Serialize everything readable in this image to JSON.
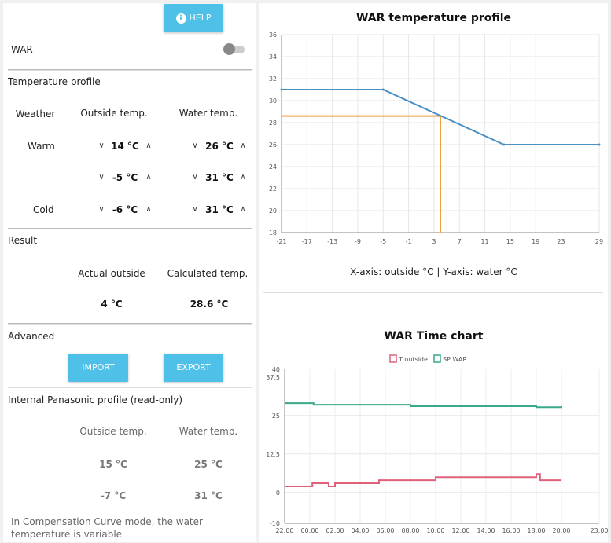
{
  "help_button": {
    "label": "HELP"
  },
  "war": {
    "label": "WAR",
    "enabled": false
  },
  "temperature_profile": {
    "title": "Temperature profile",
    "headers": {
      "weather": "Weather",
      "outside": "Outside temp.",
      "water": "Water temp."
    },
    "rows": [
      {
        "label": "Warm",
        "outside": "14 °C",
        "water": "26 °C"
      },
      {
        "label": "",
        "outside": "-5 °C",
        "water": "31 °C"
      },
      {
        "label": "Cold",
        "outside": "-6 °C",
        "water": "31 °C"
      }
    ]
  },
  "result": {
    "title": "Result",
    "actual_label": "Actual outside",
    "calculated_label": "Calculated temp.",
    "actual_value": "4 °C",
    "calculated_value": "28.6 °C"
  },
  "advanced": {
    "title": "Advanced",
    "import_label": "IMPORT",
    "export_label": "EXPORT"
  },
  "internal_profile": {
    "title": "Internal Panasonic profile (read-only)",
    "outside_header": "Outside temp.",
    "water_header": "Water temp.",
    "rows": [
      {
        "outside": "15 °C",
        "water": "25 °C"
      },
      {
        "outside": "-7 °C",
        "water": "31 °C"
      }
    ],
    "note": "In Compensation Curve mode, the water temperature is variable"
  },
  "chart_data": [
    {
      "type": "line",
      "title": "WAR temperature profile",
      "caption": "X-axis: outside °C | Y-axis: water °C",
      "xlim": [
        -21,
        29
      ],
      "ylim": [
        18,
        36
      ],
      "x_ticks": [
        -21,
        -17,
        -13,
        -9,
        -5,
        -1,
        3,
        7,
        11,
        15,
        19,
        23,
        29
      ],
      "y_ticks": [
        18,
        20,
        22,
        24,
        26,
        28,
        30,
        32,
        34,
        36
      ],
      "grid": true,
      "colors": {
        "curve": "#4a90c2",
        "marker": "#f0a040"
      },
      "series": [
        {
          "points": [
            [
              -21,
              31
            ],
            [
              -5,
              31
            ],
            [
              14,
              26
            ],
            [
              29,
              26
            ]
          ]
        }
      ],
      "marker": {
        "x": 4,
        "y": 28.6
      }
    },
    {
      "type": "line",
      "title": "WAR Time chart",
      "ylim": [
        -10,
        40
      ],
      "y_ticks": [
        -10,
        0,
        12.5,
        25,
        37.5,
        40
      ],
      "y_tick_labels": [
        "-10",
        "0",
        "12,5",
        "25",
        "37,5",
        "40"
      ],
      "x_ticks": [
        "22:00",
        "00:00",
        "02:00",
        "04:00",
        "06:00",
        "08:00",
        "10:00",
        "12:00",
        "14:00",
        "16:00",
        "18:00",
        "20:00",
        "23:00"
      ],
      "grid": true,
      "legend": "top",
      "series": [
        {
          "name": "T outside",
          "color": "#e0607a",
          "x": [
            22,
            24,
            24.2,
            25.5,
            26,
            26.5,
            29.5,
            34,
            38,
            41.5,
            42,
            42.3,
            44
          ],
          "values": [
            2,
            2,
            3,
            2,
            3,
            3,
            4,
            5,
            5,
            5,
            6,
            4,
            4
          ]
        },
        {
          "name": "SP WAR",
          "color": "#3aa88a",
          "x": [
            22,
            24,
            24.3,
            26,
            28,
            32,
            38,
            41,
            42,
            44
          ],
          "values": [
            29,
            29,
            28.5,
            28.5,
            28.5,
            28,
            28,
            28,
            27.7,
            28
          ]
        }
      ]
    }
  ]
}
